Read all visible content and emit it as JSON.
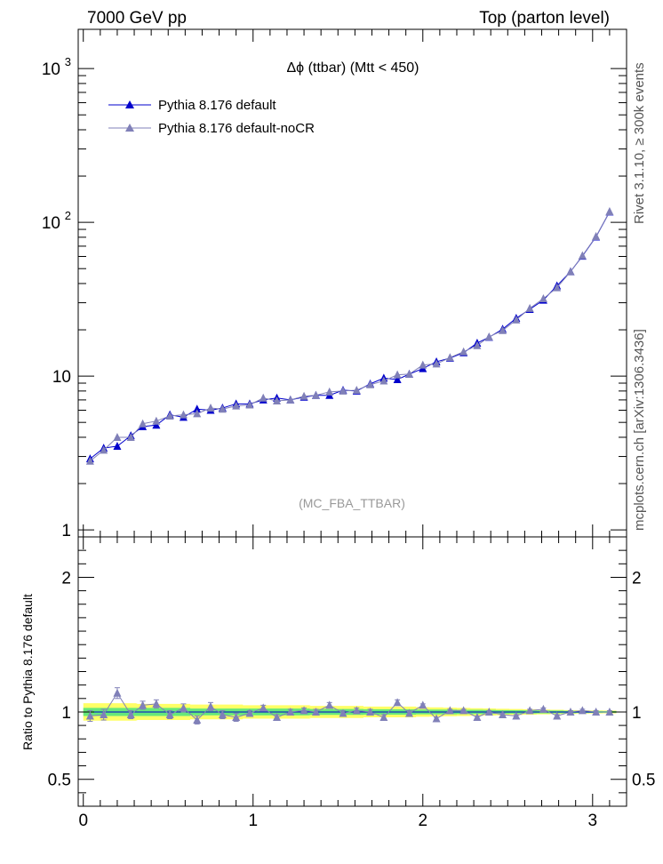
{
  "header": {
    "left": "7000 GeV pp",
    "right": "Top (parton level)"
  },
  "side_labels": {
    "rivet": "Rivet 3.1.10, ≥ 300k events",
    "mcplots": "mcplots.cern.ch [arXiv:1306.3436]"
  },
  "colors": {
    "default": "#0000cc",
    "nocr": "#8080b8",
    "band_yellow": "#ffff66",
    "band_green": "#66e87a"
  },
  "chart_data": [
    {
      "type": "line",
      "title": "Δϕ (ttbar) (Mtt < 450)",
      "watermark": "(MC_FBA_TTBAR)",
      "xlabel": "",
      "ylabel": "",
      "yscale": "log",
      "xlim": [
        -0.03,
        3.2
      ],
      "ylim": [
        0.9,
        1800
      ],
      "ytick_labels": [
        "1",
        "10",
        "10^2",
        "10^3"
      ],
      "xtick_labels": [
        "0",
        "1",
        "2",
        "3"
      ],
      "legend_position": "top-left",
      "x": [
        0.04,
        0.12,
        0.2,
        0.28,
        0.35,
        0.43,
        0.51,
        0.59,
        0.67,
        0.75,
        0.82,
        0.9,
        0.98,
        1.06,
        1.14,
        1.22,
        1.3,
        1.37,
        1.45,
        1.53,
        1.61,
        1.69,
        1.77,
        1.85,
        1.92,
        2.0,
        2.08,
        2.16,
        2.24,
        2.32,
        2.39,
        2.47,
        2.55,
        2.63,
        2.71,
        2.79,
        2.87,
        2.94,
        3.02,
        3.1
      ],
      "series": [
        {
          "name": "Pythia 8.176 default",
          "color": "#0000cc",
          "values": [
            2.9,
            3.4,
            3.5,
            4.1,
            4.7,
            4.8,
            5.6,
            5.4,
            6.1,
            6.0,
            6.2,
            6.6,
            6.6,
            7.0,
            7.2,
            7.0,
            7.3,
            7.5,
            7.5,
            8.1,
            8.0,
            8.9,
            9.7,
            9.5,
            10.3,
            11.2,
            12.4,
            13.1,
            14.2,
            16.4,
            17.9,
            20.2,
            23.8,
            27.2,
            31.2,
            38.7,
            47.8,
            60.3,
            80.4,
            117.0
          ]
        },
        {
          "name": "Pythia 8.176 default-noCR",
          "color": "#8080b8",
          "values": [
            2.8,
            3.3,
            4.0,
            4.0,
            4.9,
            5.1,
            5.5,
            5.6,
            5.7,
            6.2,
            6.1,
            6.4,
            6.5,
            7.2,
            6.9,
            7.0,
            7.4,
            7.5,
            7.9,
            8.0,
            8.1,
            8.8,
            9.3,
            10.2,
            10.3,
            11.8,
            12.0,
            13.2,
            14.4,
            15.8,
            18.0,
            19.8,
            23.2,
            27.6,
            31.9,
            37.6,
            47.8,
            60.7,
            80.9,
            117.5
          ]
        }
      ]
    },
    {
      "type": "line",
      "ylabel": "Ratio to Pythia 8.176 default",
      "xlim": [
        -0.03,
        3.2
      ],
      "ylim": [
        0.3,
        2.3
      ],
      "ytick_labels": [
        "0.5",
        "1",
        "2"
      ],
      "xtick_labels": [
        "0",
        "1",
        "2",
        "3"
      ],
      "band_green_halfwidth": [
        0.03,
        0.03,
        0.03,
        0.03,
        0.03,
        0.03,
        0.03,
        0.03,
        0.025,
        0.025,
        0.025,
        0.025,
        0.025,
        0.025,
        0.025,
        0.025,
        0.025,
        0.022,
        0.022,
        0.022,
        0.022,
        0.02,
        0.02,
        0.02,
        0.02,
        0.018,
        0.018,
        0.018,
        0.016,
        0.016,
        0.015,
        0.014,
        0.013,
        0.012,
        0.011,
        0.01,
        0.009,
        0.008,
        0.007,
        0.006
      ],
      "band_yellow_halfwidth": [
        0.065,
        0.065,
        0.065,
        0.065,
        0.06,
        0.06,
        0.06,
        0.06,
        0.055,
        0.055,
        0.055,
        0.055,
        0.05,
        0.05,
        0.05,
        0.05,
        0.05,
        0.045,
        0.045,
        0.045,
        0.045,
        0.04,
        0.04,
        0.04,
        0.04,
        0.036,
        0.034,
        0.032,
        0.03,
        0.028,
        0.026,
        0.024,
        0.022,
        0.02,
        0.018,
        0.016,
        0.014,
        0.012,
        0.011,
        0.01
      ],
      "series": [
        {
          "name": "Pythia 8.176 default-noCR",
          "color": "#8080b8",
          "values": [
            0.97,
            0.98,
            1.14,
            0.98,
            1.05,
            1.06,
            0.98,
            1.03,
            0.94,
            1.04,
            0.98,
            0.96,
            0.99,
            1.03,
            0.96,
            1.0,
            1.01,
            1.0,
            1.05,
            0.99,
            1.01,
            1.0,
            0.96,
            1.07,
            0.99,
            1.05,
            0.95,
            1.01,
            1.01,
            0.96,
            1.0,
            0.98,
            0.97,
            1.01,
            1.02,
            0.97,
            1.0,
            1.01,
            1.0,
            1.0
          ],
          "errors": [
            0.04,
            0.04,
            0.04,
            0.03,
            0.03,
            0.03,
            0.03,
            0.03,
            0.03,
            0.03,
            0.03,
            0.03,
            0.02,
            0.02,
            0.02,
            0.02,
            0.02,
            0.02,
            0.02,
            0.02,
            0.02,
            0.02,
            0.02,
            0.02,
            0.02,
            0.01,
            0.01,
            0.01,
            0.01,
            0.01,
            0.01,
            0.01,
            0.01,
            0.01,
            0.01,
            0.01,
            0.01,
            0.01,
            0.01,
            0.01
          ]
        }
      ]
    }
  ]
}
